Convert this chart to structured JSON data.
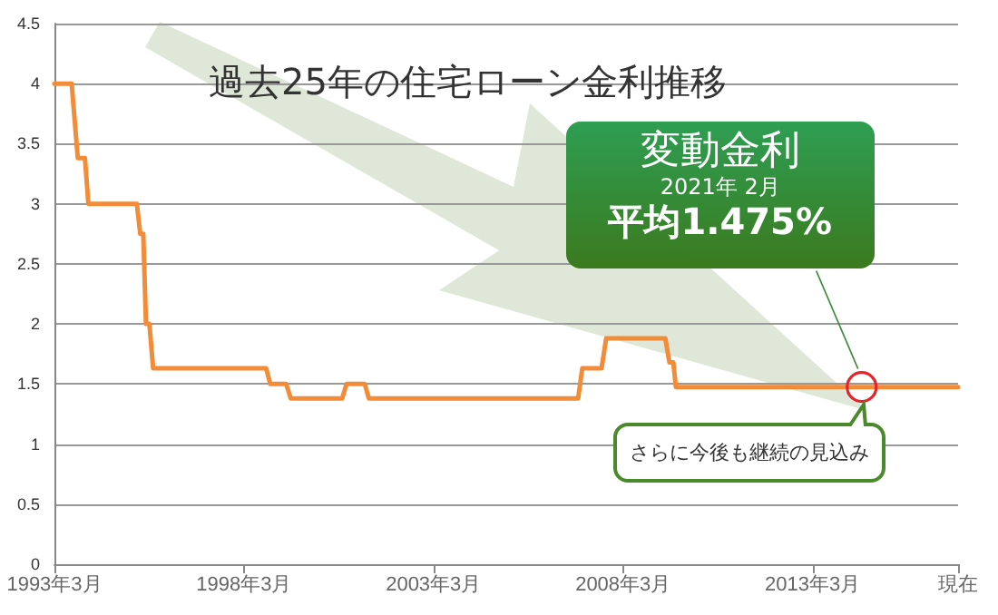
{
  "chart_data": {
    "type": "line",
    "title": "過去25年の住宅ローン金利推移",
    "x": [
      "1993-03-01",
      "1993-08-14",
      "1993-10-12",
      "1993-12-20",
      "1994-01-22",
      "1995-05-04",
      "1995-06-06",
      "1995-07-05",
      "1995-07-31",
      "1995-09-02",
      "1995-10-08",
      "1998-10-01",
      "1998-11-10",
      "1999-04-12",
      "1999-05-26",
      "2000-10-03",
      "2000-11-13",
      "2001-05-08",
      "2001-06-17",
      "2006-12-24",
      "2007-02-02",
      "2007-08-07",
      "2007-09-20",
      "2009-04-12",
      "2009-05-22",
      "2009-06-28",
      "2009-07-23",
      "2017-01-01"
    ],
    "series": [
      {
        "color": "#f28c38",
        "values": [
          4,
          4,
          3.38,
          3.38,
          3,
          3,
          2.75,
          2.75,
          2,
          2,
          1.63,
          1.63,
          1.5,
          1.5,
          1.38,
          1.38,
          1.5,
          1.5,
          1.38,
          1.38,
          1.63,
          1.63,
          1.88,
          1.88,
          1.68,
          1.68,
          1.475,
          1.475
        ]
      }
    ],
    "xlim": [
      "1993-03-01",
      "2017-01-01"
    ],
    "xticks": [
      {
        "value": "1993-03-01",
        "label": "1993年3月"
      },
      {
        "value": "1998-03-01",
        "label": "1998年3月"
      },
      {
        "value": "2003-03-01",
        "label": "2003年3月"
      },
      {
        "value": "2008-03-01",
        "label": "2008年3月"
      },
      {
        "value": "2013-03-01",
        "label": "2013年3月"
      },
      {
        "value": "2017-01-01",
        "label": "現在"
      }
    ],
    "ylim": [
      0,
      4.5
    ],
    "yticks": [
      0,
      0.5,
      1,
      1.5,
      2,
      2.5,
      3,
      3.5,
      4,
      4.5
    ],
    "grid": "y",
    "marker": "none",
    "line_style": "solid",
    "annotations": [
      "変動金利",
      "2021年 2月",
      "平均1.475%",
      {
        "text": "さらに今後も継続の見込み",
        "x": "2014-06-17",
        "y": 1.475
      }
    ]
  }
}
